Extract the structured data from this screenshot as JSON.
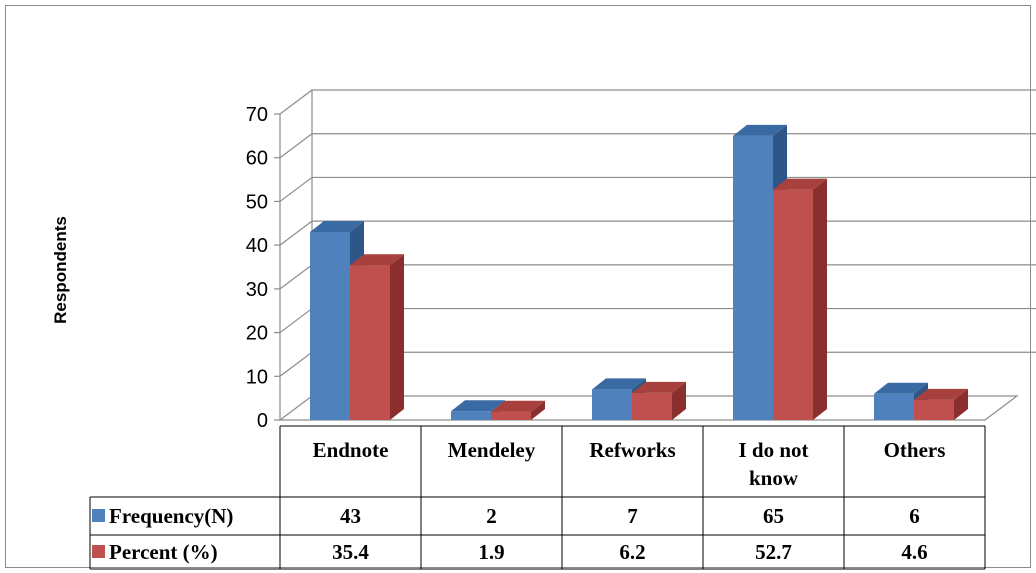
{
  "chart_data": {
    "type": "bar",
    "title": "",
    "xlabel": "",
    "ylabel": "Respondents",
    "ylim": [
      0,
      70
    ],
    "yticks": [
      0,
      10,
      20,
      30,
      40,
      50,
      60,
      70
    ],
    "categories": [
      "Endnote",
      "Mendeley",
      "Refworks",
      "I do not know",
      "Others"
    ],
    "category_lines": [
      [
        "Endnote"
      ],
      [
        "Mendeley"
      ],
      [
        "Refworks"
      ],
      [
        "I do not",
        "know"
      ],
      [
        "Others"
      ]
    ],
    "series": [
      {
        "name": "Frequency(N)",
        "values": [
          43,
          2,
          7,
          65,
          6
        ],
        "labels": [
          "43",
          "2",
          "7",
          "65",
          "6"
        ],
        "color": "#4f81bd",
        "top_color": "#3a6aa4",
        "side_color": "#2e5686"
      },
      {
        "name": "Percent (%)",
        "values": [
          35.4,
          1.9,
          6.2,
          52.7,
          4.6
        ],
        "labels": [
          "35.4",
          "1.9",
          "6.2",
          "52.7",
          "4.6"
        ],
        "color": "#c0504d",
        "top_color": "#a8403d",
        "side_color": "#8a2f2d"
      }
    ],
    "grid": true,
    "legend": "data-table-left",
    "style": "3d-clustered-column"
  }
}
